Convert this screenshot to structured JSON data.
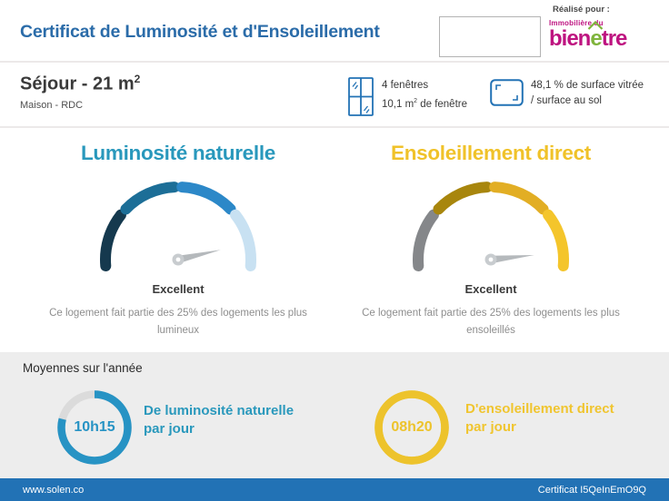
{
  "header": {
    "title": "Certificat de Luminosité et d'Ensoleillement",
    "title_color": "#2B6CA9",
    "realise_pour": "Réalisé pour :",
    "logo_small": "Immobilière du",
    "logo_part1": "bien",
    "logo_accent": "e",
    "logo_part2": "tre",
    "logo_magenta": "#BE1380",
    "logo_green": "#7FB43C"
  },
  "theme": {
    "icon_blue": "#2272B5"
  },
  "room": {
    "title": "Séjour - 21 m",
    "title_sup": "2",
    "subtitle": "Maison - RDC",
    "windows_line1": "4 fenêtres",
    "windows_line2_pre": "10,1 m",
    "windows_line2_sup": "2",
    "windows_line2_post": " de fenêtre",
    "windows_icon": "window-icon",
    "surface_line1": "48,1 % de surface vitrée",
    "surface_line2": "/ surface au sol",
    "surface_icon": "floor-area-icon"
  },
  "gauges": [
    {
      "title": "Luminosité naturelle",
      "title_color": "#2998BC",
      "segments": [
        "#15394E",
        "#1C6E97",
        "#2C88C8",
        "#C8E1F2"
      ],
      "needle_deg": 13,
      "needle_color": "#B5B9BC",
      "pivot_color": "#C8CCCF",
      "rating": "Excellent",
      "desc1": "Ce logement fait partie des 25% des logements les plus",
      "desc2": "lumineux"
    },
    {
      "title": "Ensoleillement direct",
      "title_color": "#F0C229",
      "segments": [
        "#85878A",
        "#A8860D",
        "#E2AE24",
        "#F4C52B"
      ],
      "needle_deg": 6,
      "needle_color": "#B5B9BC",
      "pivot_color": "#C8CCCF",
      "rating": "Excellent",
      "desc1": "Ce logement fait partie des 25% des logements les plus",
      "desc2": "ensoleillés"
    }
  ],
  "averages": {
    "heading": "Moyennes sur l'année",
    "rings": [
      {
        "value": "10h15",
        "ring_color": "#2793C4",
        "track_color": "#DBDBDB",
        "fraction": 0.79,
        "label1": "De luminosité naturelle",
        "label2": "par jour",
        "label_color": "#2998BC"
      },
      {
        "value": "08h20",
        "ring_color": "#EDC32C",
        "track_color": "#EDC32C",
        "fraction": 1,
        "label1": "D'ensoleillement direct",
        "label2": "par jour",
        "label_color": "#F0C52F"
      }
    ]
  },
  "footer": {
    "site": "www.solen.co",
    "certificate": "Certificat I5QeInEmO9Q",
    "bar_color": "#2272B5"
  }
}
